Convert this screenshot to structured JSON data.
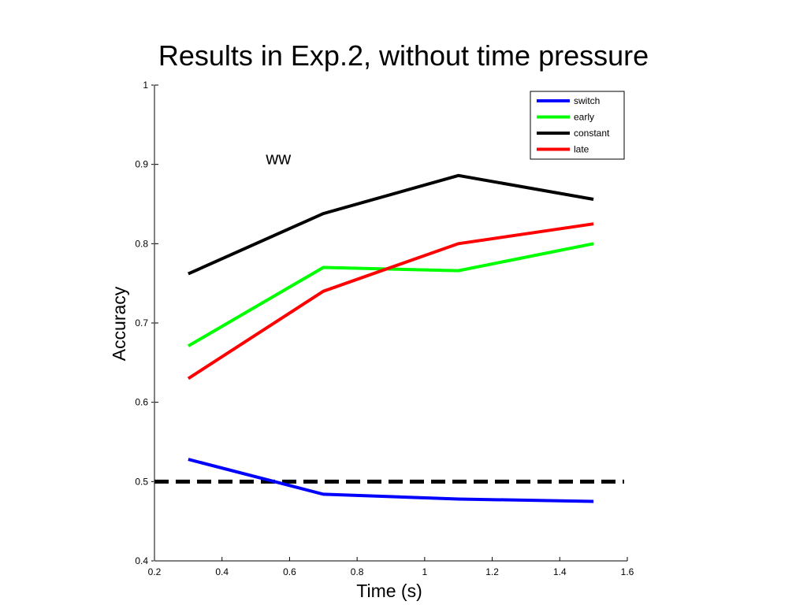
{
  "chart_data": {
    "type": "line",
    "title": "Results in Exp.2, without time pressure",
    "xlabel": "Time (s)",
    "ylabel": "Accuracy",
    "xlim": [
      0.2,
      1.6
    ],
    "ylim": [
      0.4,
      1.0
    ],
    "x_ticks": [
      "0.2",
      "0.4",
      "0.6",
      "0.8",
      "1",
      "1.2",
      "1.4",
      "1.6"
    ],
    "y_ticks": [
      "0.4",
      "0.5",
      "0.6",
      "0.7",
      "0.8",
      "0.9",
      "1"
    ],
    "grid": false,
    "legend_position": "top-right",
    "x": [
      0.3,
      0.7,
      1.1,
      1.5
    ],
    "series": [
      {
        "name": "switch",
        "color": "#0000ff",
        "values": [
          0.528,
          0.484,
          0.478,
          0.475
        ]
      },
      {
        "name": "early",
        "color": "#00ff00",
        "values": [
          0.671,
          0.77,
          0.766,
          0.8
        ]
      },
      {
        "name": "constant",
        "color": "#000000",
        "values": [
          0.762,
          0.838,
          0.886,
          0.856
        ]
      },
      {
        "name": "late",
        "color": "#ff0000",
        "values": [
          0.63,
          0.74,
          0.8,
          0.825
        ]
      }
    ],
    "reference_line": {
      "y": 0.5,
      "style": "dashed",
      "color": "#000000"
    },
    "annotations": [
      {
        "text": "ww",
        "x": 0.53,
        "y": 0.9
      }
    ]
  }
}
